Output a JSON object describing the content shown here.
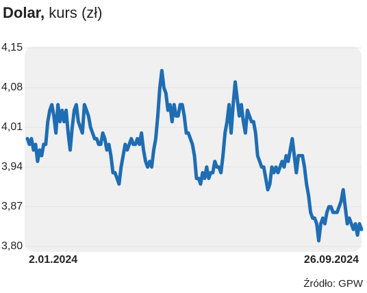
{
  "chart_data": {
    "type": "line",
    "title": "Dolar,",
    "subtitle": "kurs (zł)",
    "source": "Źródło: GPW",
    "categories": [
      "2.01.2024",
      null,
      null,
      null,
      null,
      null,
      null,
      null,
      null,
      null,
      null,
      null,
      null,
      null,
      null,
      null,
      null,
      null,
      null,
      null,
      null,
      null,
      null,
      null,
      null,
      null,
      null,
      null,
      null,
      null,
      null,
      null,
      null,
      null,
      null,
      null,
      null,
      null,
      null,
      null,
      null,
      null,
      null,
      null,
      null,
      null,
      null,
      null,
      null,
      null,
      null,
      null,
      null,
      null,
      null,
      null,
      null,
      null,
      null,
      null,
      null,
      null,
      null,
      null,
      null,
      null,
      null,
      null,
      null,
      null,
      null,
      null,
      null,
      null,
      null,
      null,
      null,
      null,
      null,
      null,
      null,
      null,
      null,
      null,
      null,
      null,
      null,
      null,
      null,
      null,
      null,
      null,
      null,
      null,
      null,
      null,
      null,
      null,
      null,
      null,
      null,
      null,
      null,
      null,
      null,
      null,
      null,
      null,
      null,
      null,
      null,
      null,
      null,
      null,
      null,
      null,
      null,
      null,
      null,
      null,
      null,
      null,
      null,
      null,
      null,
      null,
      null,
      null,
      null,
      null,
      null,
      null,
      null,
      null,
      null,
      null,
      null,
      null,
      null,
      null,
      null,
      null,
      null,
      null,
      null,
      null,
      null,
      null,
      null,
      null,
      null,
      null,
      null,
      null,
      null,
      null,
      null,
      null,
      null,
      null,
      null,
      null,
      null,
      null,
      "26.09.2024"
    ],
    "series": [
      {
        "name": "Dolar",
        "color": "#1f6db3",
        "values": [
          3.99,
          3.98,
          3.99,
          3.97,
          3.98,
          3.95,
          3.97,
          3.96,
          3.98,
          3.98,
          4.02,
          4.04,
          4.05,
          4.03,
          4.0,
          4.05,
          4.02,
          4.04,
          4.02,
          4.04,
          4.0,
          3.97,
          4.01,
          4.04,
          4.05,
          4.02,
          4.01,
          4.0,
          4.05,
          4.04,
          4.03,
          4.01,
          4.0,
          3.99,
          3.99,
          3.98,
          3.98,
          4.0,
          3.99,
          3.97,
          3.98,
          3.96,
          3.93,
          3.93,
          3.92,
          3.91,
          3.94,
          3.96,
          3.98,
          3.97,
          3.98,
          3.99,
          3.98,
          3.98,
          3.99,
          3.98,
          4.0,
          3.97,
          3.95,
          3.94,
          3.95,
          3.94,
          3.97,
          3.99,
          4.03,
          4.08,
          4.11,
          4.08,
          4.07,
          4.04,
          4.05,
          4.02,
          4.05,
          4.03,
          4.03,
          4.05,
          4.05,
          4.03,
          4.0,
          4.0,
          3.99,
          3.98,
          3.96,
          3.92,
          3.92,
          3.91,
          3.93,
          3.92,
          3.94,
          3.92,
          3.93,
          3.93,
          3.95,
          3.94,
          3.94,
          3.93,
          3.96,
          4.0,
          4.02,
          4.05,
          4.0,
          4.05,
          4.09,
          4.06,
          4.03,
          4.05,
          4.02,
          4.0,
          4.04,
          4.03,
          4.02,
          4.02,
          4.0,
          3.96,
          3.95,
          3.94,
          3.94,
          3.92,
          3.9,
          3.91,
          3.94,
          3.93,
          3.94,
          3.93,
          3.94,
          3.95,
          3.94,
          3.96,
          3.95,
          3.97,
          3.99,
          3.96,
          3.93,
          3.96,
          3.96,
          3.96,
          3.94,
          3.91,
          3.89,
          3.86,
          3.85,
          3.85,
          3.84,
          3.81,
          3.84,
          3.85,
          3.84,
          3.86,
          3.87,
          3.87,
          3.86,
          3.86,
          3.86,
          3.87,
          3.88,
          3.9,
          3.87,
          3.84,
          3.85,
          3.84,
          3.83,
          3.84,
          3.82,
          3.84,
          3.83
        ]
      }
    ],
    "ylim": [
      3.8,
      4.15
    ],
    "yticks": [
      {
        "value": 3.8,
        "label": "3,80"
      },
      {
        "value": 3.87,
        "label": "3,87"
      },
      {
        "value": 3.94,
        "label": "3,94"
      },
      {
        "value": 4.01,
        "label": "4,01"
      },
      {
        "value": 4.08,
        "label": "4,08"
      },
      {
        "value": 4.15,
        "label": "4,15"
      }
    ],
    "grid": true
  }
}
